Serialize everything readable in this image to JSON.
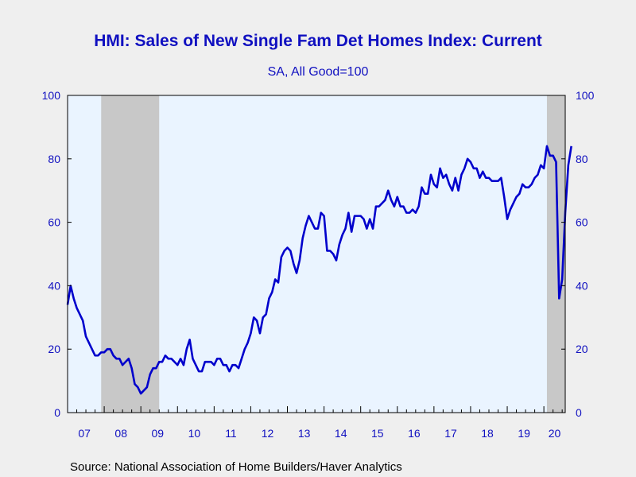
{
  "colors": {
    "background": "#efefef",
    "plot_background": "#eaf4ff",
    "recession_shade": "#c8c8c8",
    "line": "#0000cc",
    "text": "#1010c0",
    "axis": "#000000"
  },
  "source": "Source:  National Association of Home Builders/Haver Analytics",
  "chart_data": {
    "type": "line",
    "title": "HMI: Sales of New Single Fam Det Homes Index: Current",
    "subtitle": "SA, All Good=100",
    "xlabel": "",
    "ylabel": "",
    "ylim": [
      0,
      100
    ],
    "yticks": [
      0,
      20,
      40,
      60,
      80,
      100
    ],
    "yaxis_right": true,
    "grid": false,
    "xlim": [
      "2007-01",
      "2020-08"
    ],
    "xtick_labels": [
      "07",
      "08",
      "09",
      "10",
      "11",
      "12",
      "13",
      "14",
      "15",
      "16",
      "17",
      "18",
      "19",
      "20"
    ],
    "recessions": [
      {
        "start": "2007-12",
        "end": "2009-06"
      },
      {
        "start": "2020-02",
        "end": "2020-08"
      }
    ],
    "series": [
      {
        "start": "2007-01",
        "frequency": "monthly",
        "values": [
          34,
          40,
          36,
          33,
          31,
          29,
          24,
          22,
          20,
          18,
          18,
          19,
          19,
          20,
          20,
          18,
          17,
          17,
          15,
          16,
          17,
          14,
          9,
          8,
          6,
          7,
          8,
          12,
          14,
          14,
          16,
          16,
          18,
          17,
          17,
          16,
          15,
          17,
          15,
          20,
          23,
          17,
          15,
          13,
          13,
          16,
          16,
          16,
          15,
          17,
          17,
          15,
          15,
          13,
          15,
          15,
          14,
          17,
          20,
          22,
          25,
          30,
          29,
          25,
          30,
          31,
          36,
          38,
          42,
          41,
          49,
          51,
          52,
          51,
          47,
          44,
          48,
          55,
          59,
          62,
          60,
          58,
          58,
          63,
          62,
          51,
          51,
          50,
          48,
          53,
          56,
          58,
          63,
          57,
          62,
          62,
          62,
          61,
          58,
          61,
          58,
          65,
          65,
          66,
          67,
          70,
          67,
          65,
          68,
          65,
          65,
          63,
          63,
          64,
          63,
          65,
          71,
          69,
          69,
          75,
          72,
          71,
          77,
          74,
          75,
          72,
          70,
          74,
          70,
          75,
          77,
          80,
          79,
          77,
          77,
          74,
          76,
          74,
          74,
          73,
          73,
          73,
          74,
          68,
          61,
          64,
          66,
          68,
          69,
          72,
          71,
          71,
          72,
          74,
          75,
          78,
          77,
          84,
          81,
          81,
          79,
          36,
          42,
          63,
          78,
          84
        ]
      }
    ]
  }
}
